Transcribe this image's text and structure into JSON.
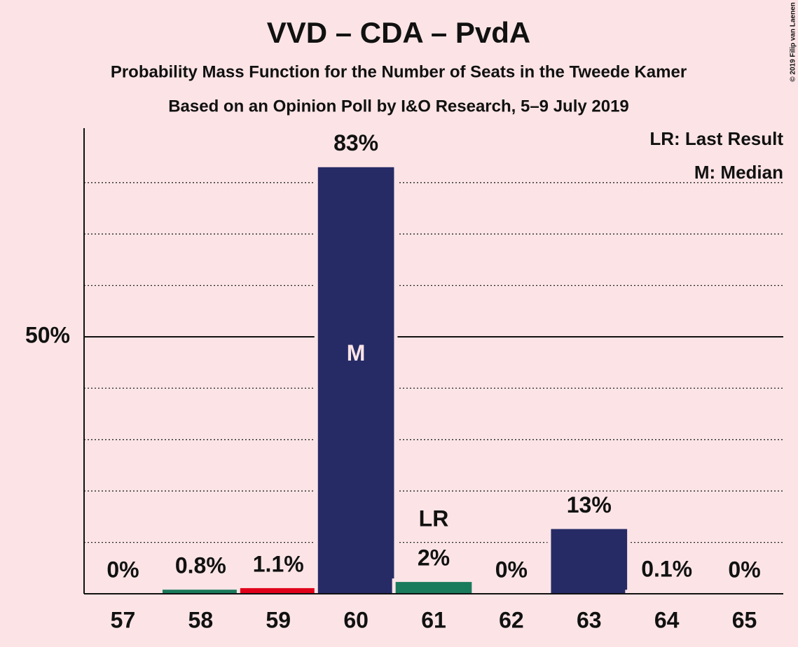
{
  "chart_data": {
    "type": "bar",
    "title": "VVD – CDA – PvdA",
    "subtitle": "Probability Mass Function for the Number of Seats in the Tweede Kamer",
    "subtitle2": "Based on an Opinion Poll by I&O Research, 5–9 July 2019",
    "categories": [
      "57",
      "58",
      "59",
      "60",
      "61",
      "62",
      "63",
      "64",
      "65"
    ],
    "values": [
      0,
      0.8,
      1.1,
      83,
      2.3,
      0,
      12.6,
      0.1,
      0
    ],
    "value_labels": [
      "0%",
      "0.8%",
      "1.1%",
      "83%",
      "2%",
      "0%",
      "13%",
      "0.1%",
      "0%"
    ],
    "colors": [
      "#262b66",
      "#1a7a5c",
      "#e0001a",
      "#262b66",
      "#1a7a5c",
      "#262b66",
      "#262b66",
      "#262b66",
      "#262b66"
    ],
    "ylim": [
      0,
      90.6
    ],
    "yticks": [
      {
        "value": 50,
        "label": "50%"
      }
    ],
    "grid_values": [
      10,
      20,
      30,
      40,
      60,
      70,
      80
    ],
    "median": "60",
    "median_label": "M",
    "last_result": "61",
    "last_result_label": "LR",
    "legend": [
      "LR: Last Result",
      "M: Median"
    ],
    "copyright": "© 2019 Filip van Laenen"
  }
}
